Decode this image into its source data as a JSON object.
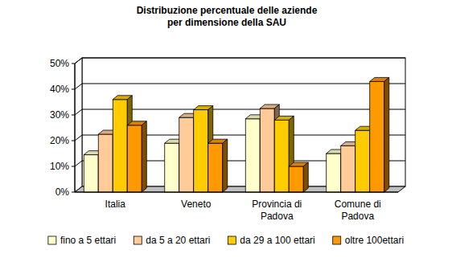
{
  "chart_data": {
    "type": "bar",
    "title": "Distribuzione percentuale delle aziende\nper dimensione della SAU",
    "categories": [
      "Italia",
      "Veneto",
      "Provincia di\nPadova",
      "Comune di\nPadova"
    ],
    "series": [
      {
        "name": "fino a 5 ettari",
        "color": "#ffffcc",
        "values": [
          14.5,
          19,
          28.5,
          15
        ]
      },
      {
        "name": "da 5 a 20 ettari",
        "color": "#ffcc99",
        "values": [
          22.5,
          29,
          32.5,
          18
        ]
      },
      {
        "name": "da 29 a 100 ettari",
        "color": "#ffcc00",
        "values": [
          36,
          32,
          28,
          24
        ]
      },
      {
        "name": "oltre 100ettari",
        "color": "#ff9900",
        "values": [
          26,
          19,
          10,
          43
        ]
      }
    ],
    "ylim": [
      0,
      50
    ],
    "yticks": [
      {
        "value": 0,
        "label": "0%"
      },
      {
        "value": 10,
        "label": "10%"
      },
      {
        "value": 20,
        "label": "20%"
      },
      {
        "value": 30,
        "label": "30%"
      },
      {
        "value": 40,
        "label": "40%"
      },
      {
        "value": 50,
        "label": "50%"
      }
    ],
    "grid": true,
    "legend": "bottom"
  }
}
